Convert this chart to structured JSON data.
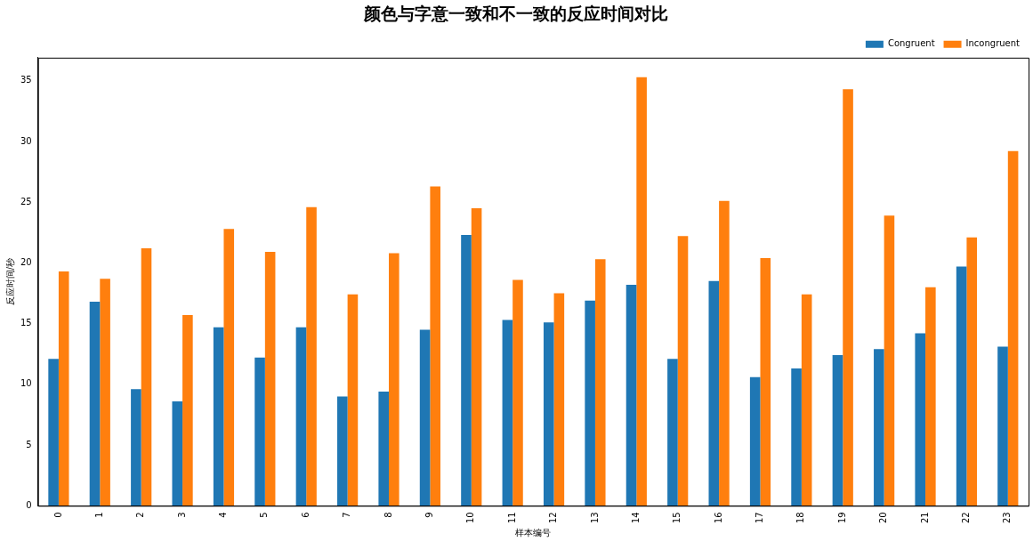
{
  "chart_data": {
    "type": "bar",
    "title": "颜色与字意一致和不一致的反应时间对比",
    "xlabel": "样本编号",
    "ylabel": "反应时间/秒",
    "categories": [
      "0",
      "1",
      "2",
      "3",
      "4",
      "5",
      "6",
      "7",
      "8",
      "9",
      "10",
      "11",
      "12",
      "13",
      "14",
      "15",
      "16",
      "17",
      "18",
      "19",
      "20",
      "21",
      "22",
      "23"
    ],
    "series": [
      {
        "name": "Congruent",
        "color": "#1f77b4",
        "values": [
          12.1,
          16.8,
          9.6,
          8.6,
          14.7,
          12.2,
          14.7,
          9.0,
          9.4,
          14.5,
          22.3,
          15.3,
          15.1,
          16.9,
          18.2,
          12.1,
          18.5,
          10.6,
          11.3,
          12.4,
          12.9,
          14.2,
          19.7,
          13.1
        ]
      },
      {
        "name": "Incongruent",
        "color": "#ff7f0e",
        "values": [
          19.3,
          18.7,
          21.2,
          15.7,
          22.8,
          20.9,
          24.6,
          17.4,
          20.8,
          26.3,
          24.5,
          18.6,
          17.5,
          20.3,
          35.3,
          22.2,
          25.1,
          20.4,
          17.4,
          34.3,
          23.9,
          18.0,
          22.1,
          29.2
        ]
      }
    ],
    "ylim": [
      0,
      36.9
    ],
    "yticks": [
      0,
      5,
      10,
      15,
      20,
      25,
      30,
      35
    ],
    "grid": false,
    "legend": "top right"
  }
}
